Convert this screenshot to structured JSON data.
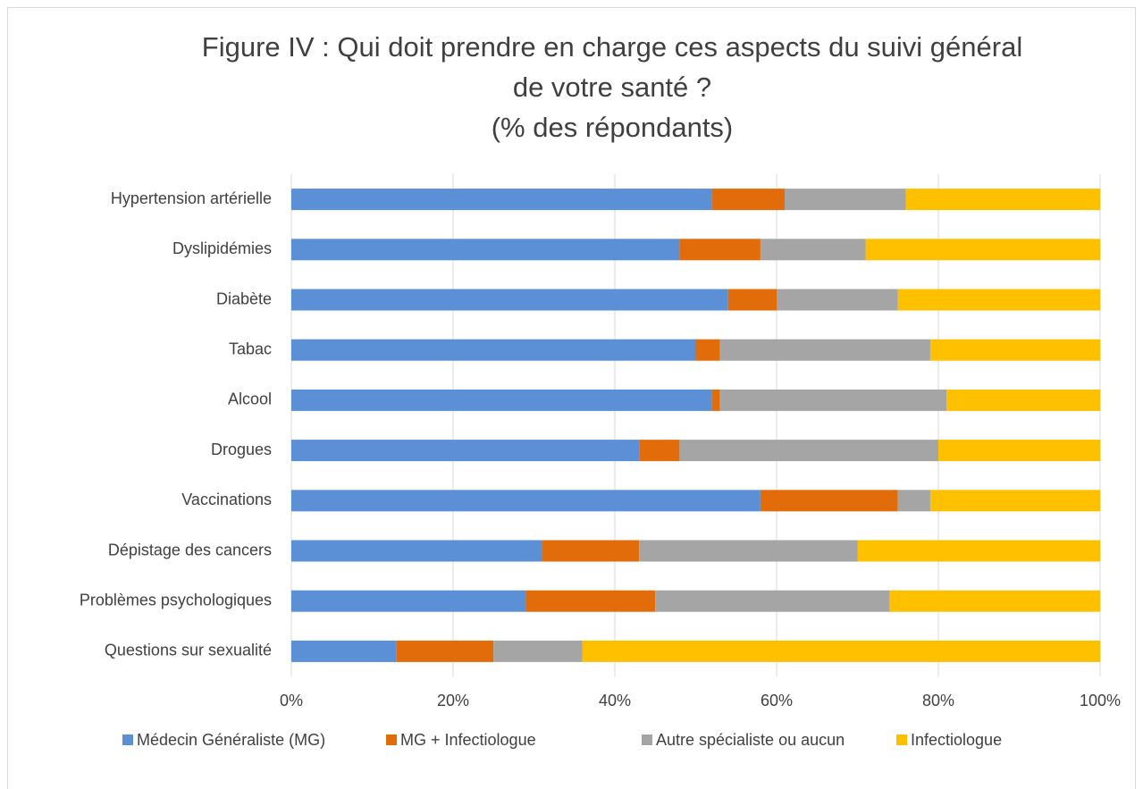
{
  "chart_data": {
    "type": "bar",
    "orientation": "horizontal",
    "stacked": true,
    "title": [
      "Figure IV : Qui doit prendre en charge ces aspects du suivi général",
      "de votre santé ?"
    ],
    "subtitle": "(% des répondants)",
    "categories": [
      "Hypertension artérielle",
      "Dyslipidémies",
      "Diabète",
      "Tabac",
      "Alcool",
      "Drogues",
      "Vaccinations",
      "Dépistage des cancers",
      "Problèmes psychologiques",
      "Questions sur sexualité"
    ],
    "series": [
      {
        "name": "Médecin Généraliste (MG)",
        "color": "#5B8FD6",
        "values": [
          52,
          48,
          54,
          50,
          52,
          43,
          58,
          31,
          29,
          13
        ]
      },
      {
        "name": "MG + Infectiologue",
        "color": "#E36C0A",
        "values": [
          9,
          10,
          6,
          3,
          1,
          5,
          17,
          12,
          16,
          12
        ]
      },
      {
        "name": "Autre spécialiste ou aucun",
        "color": "#A5A5A5",
        "values": [
          15,
          13,
          15,
          26,
          28,
          32,
          4,
          27,
          29,
          11
        ]
      },
      {
        "name": "Infectiologue",
        "color": "#FFC000",
        "values": [
          24,
          29,
          25,
          21,
          19,
          20,
          21,
          30,
          26,
          64
        ]
      }
    ],
    "xlim": [
      0,
      100
    ],
    "xticks": [
      {
        "value": 0,
        "label": "0%"
      },
      {
        "value": 20,
        "label": "20%"
      },
      {
        "value": 40,
        "label": "40%"
      },
      {
        "value": 60,
        "label": "60%"
      },
      {
        "value": 80,
        "label": "80%"
      },
      {
        "value": 100,
        "label": "100%"
      }
    ],
    "grid": true,
    "legend": "bottom"
  }
}
